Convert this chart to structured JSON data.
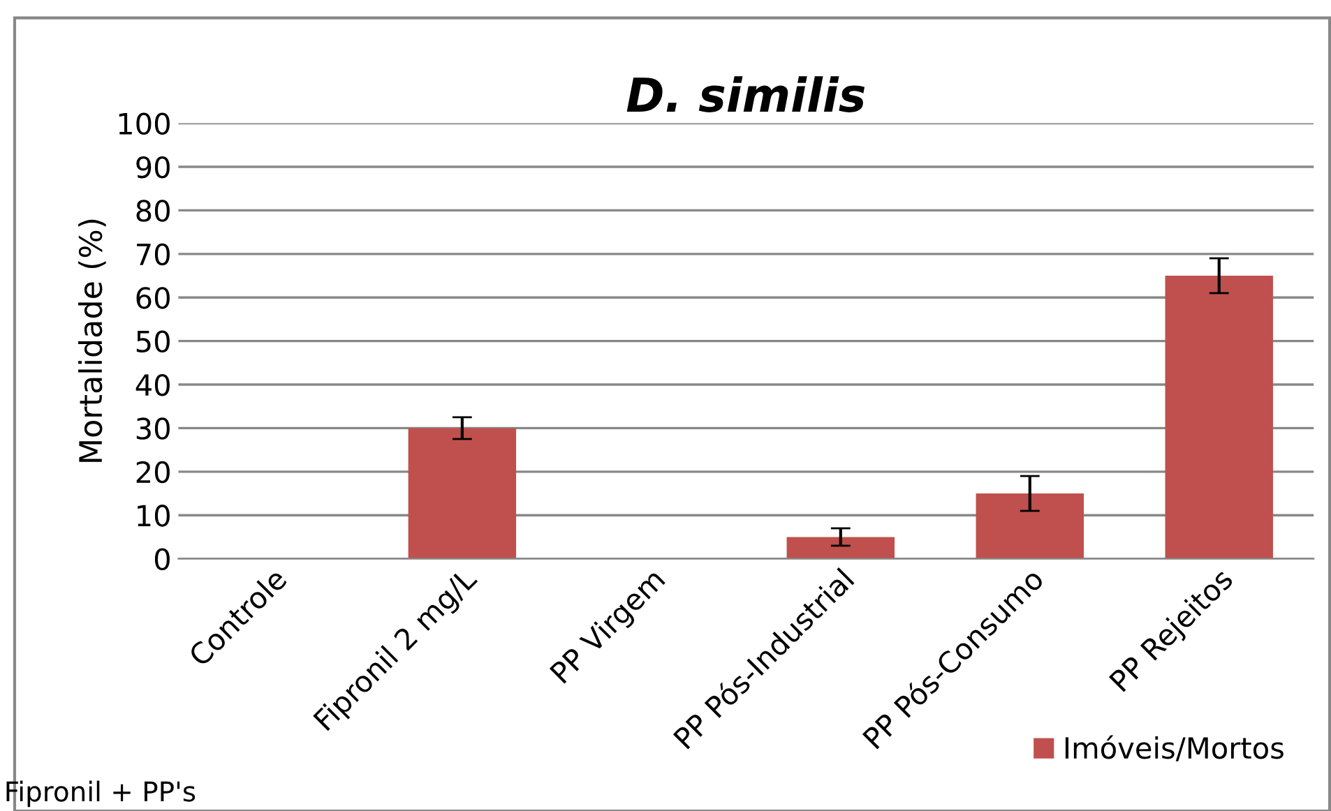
{
  "chart_data": {
    "type": "bar",
    "title": "D. similis",
    "ylabel": "Mortalidade (%)",
    "categories": [
      "Controle",
      "Fipronil 2 mg/L",
      "PP Virgem",
      "PP Pós-Industrial",
      "PP Pós-Consumo",
      "PP Rejeitos"
    ],
    "series": [
      {
        "name": "Imóveis/Mortos",
        "color": "#c0504d",
        "values": [
          0,
          30,
          0,
          5,
          15,
          65
        ],
        "errors": [
          null,
          2.5,
          null,
          2,
          4,
          4
        ]
      }
    ],
    "ylim": [
      0,
      100
    ],
    "yticks": [
      0,
      10,
      20,
      30,
      40,
      50,
      60,
      70,
      80,
      90,
      100
    ],
    "grid": "y",
    "legend": "bottom right",
    "annotations": [
      "Fipronil + PP's"
    ]
  }
}
